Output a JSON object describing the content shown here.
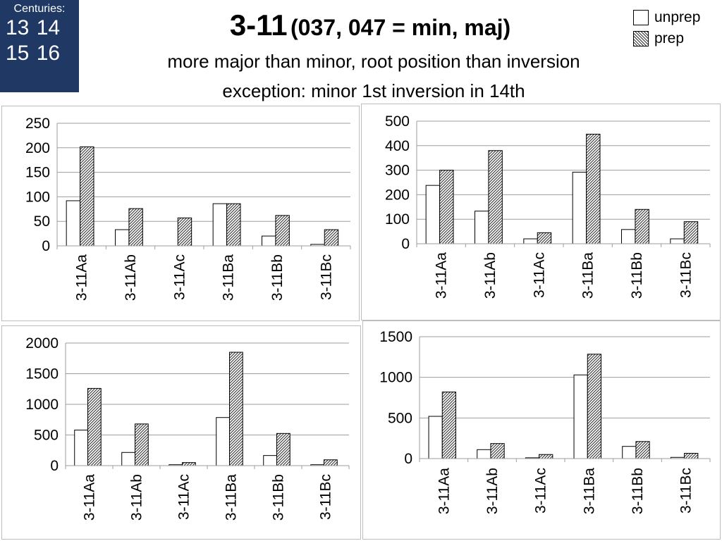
{
  "centuries": {
    "caption": "Centuries:",
    "row1": "13 14",
    "row2": "15 16"
  },
  "title": {
    "main": "3-11",
    "paren": "(037, 047 = min, maj)"
  },
  "subtitle": {
    "line1": "more major than minor, root position than inversion",
    "line2": "exception: minor 1st inversion in 14th"
  },
  "legend": [
    {
      "label": "unprep",
      "pattern": "plain"
    },
    {
      "label": "prep",
      "pattern": "hatched"
    }
  ],
  "colors": {
    "centuries_bg": "#1f3864",
    "grid": "#9e9e9e",
    "bar_stroke": "#000000"
  },
  "chart_data": [
    {
      "type": "bar",
      "categories": [
        "3-11Aa",
        "3-11Ab",
        "3-11Ac",
        "3-11Ba",
        "3-11Bb",
        "3-11Bc"
      ],
      "series": [
        {
          "name": "unprep",
          "values": [
            92,
            33,
            0,
            86,
            20,
            3
          ]
        },
        {
          "name": "prep",
          "values": [
            202,
            76,
            57,
            86,
            62,
            33
          ]
        }
      ],
      "ylim": [
        0,
        250
      ],
      "yticks": [
        0,
        50,
        100,
        150,
        200,
        250
      ],
      "grid": true
    },
    {
      "type": "bar",
      "categories": [
        "3-11Aa",
        "3-11Ab",
        "3-11Ac",
        "3-11Ba",
        "3-11Bb",
        "3-11Bc"
      ],
      "series": [
        {
          "name": "unprep",
          "values": [
            238,
            133,
            20,
            292,
            58,
            20
          ]
        },
        {
          "name": "prep",
          "values": [
            300,
            380,
            45,
            447,
            140,
            90
          ]
        }
      ],
      "ylim": [
        0,
        500
      ],
      "yticks": [
        0,
        100,
        200,
        300,
        400,
        500
      ],
      "grid": true
    },
    {
      "type": "bar",
      "categories": [
        "3-11Aa",
        "3-11Ab",
        "3-11Ac",
        "3-11Ba",
        "3-11Bb",
        "3-11Bc"
      ],
      "series": [
        {
          "name": "unprep",
          "values": [
            580,
            215,
            15,
            785,
            165,
            15
          ]
        },
        {
          "name": "prep",
          "values": [
            1260,
            680,
            50,
            1850,
            525,
            95
          ]
        }
      ],
      "ylim": [
        0,
        2000
      ],
      "yticks": [
        0,
        500,
        1000,
        1500,
        2000
      ],
      "grid": true
    },
    {
      "type": "bar",
      "categories": [
        "3-11Aa",
        "3-11Ab",
        "3-11Ac",
        "3-11Ba",
        "3-11Bb",
        "3-11Bc"
      ],
      "series": [
        {
          "name": "unprep",
          "values": [
            520,
            110,
            10,
            1030,
            150,
            15
          ]
        },
        {
          "name": "prep",
          "values": [
            820,
            185,
            50,
            1285,
            210,
            65
          ]
        }
      ],
      "ylim": [
        0,
        1500
      ],
      "yticks": [
        0,
        500,
        1000,
        1500
      ],
      "grid": true
    }
  ]
}
